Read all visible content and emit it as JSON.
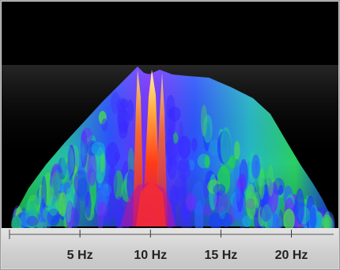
{
  "chart_data": {
    "type": "area",
    "x_unit": "Hz",
    "xlim": [
      0,
      23
    ],
    "ticks": [
      {
        "value": 5,
        "label": "5 Hz"
      },
      {
        "value": 10,
        "label": "10 Hz"
      },
      {
        "value": 15,
        "label": "15 Hz"
      },
      {
        "value": 20,
        "label": "20 Hz"
      }
    ],
    "peak_frequency": 10,
    "colors": {
      "background": "#000000",
      "axis_strip": "#d4d4d4",
      "low": "#1a3cff",
      "mid": "#1fd64a",
      "high": "#ff2a1a",
      "peak": "#ffe070"
    }
  }
}
